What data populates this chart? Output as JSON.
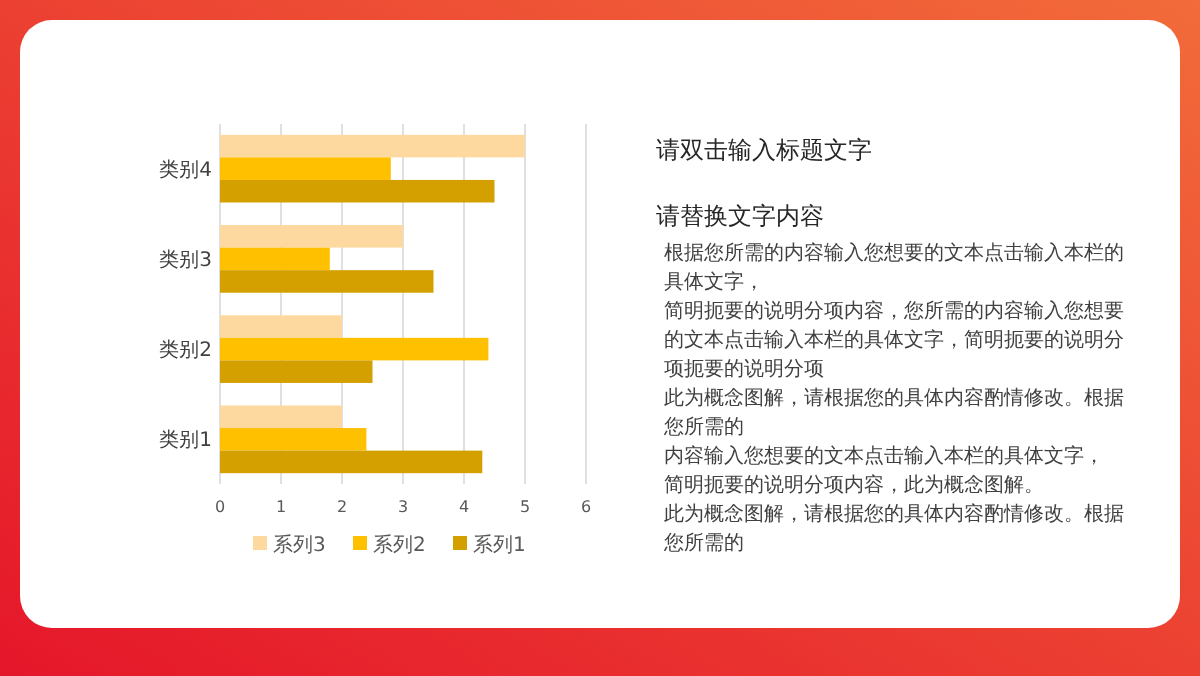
{
  "chart_data": [
    {
      "type": "bar",
      "orientation": "horizontal",
      "categories": [
        "类别4",
        "类别3",
        "类别2",
        "类别1"
      ],
      "series": [
        {
          "name": "系列3",
          "color": "#fdd9a0",
          "values": [
            5,
            3,
            2,
            2
          ]
        },
        {
          "name": "系列2",
          "color": "#ffc000",
          "values": [
            2.8,
            1.8,
            4.4,
            2.4
          ]
        },
        {
          "name": "系列1",
          "color": "#d4a000",
          "values": [
            4.5,
            3.5,
            2.5,
            4.3
          ]
        }
      ],
      "xlim": [
        0,
        6
      ],
      "xticks": [
        0,
        1,
        2,
        3,
        4,
        5,
        6
      ],
      "grid": "x",
      "legend": "bottom"
    },
    {
      "type": "other",
      "title": "请双击输入标题文字",
      "subtitle": "请替换文字内容",
      "annotations": [
        "根据您所需的内容输入您想要的文本点击输入本栏的具体文字，",
        "简明扼要的说明分项内容，您所需的内容输入您想要的文本点击输入本栏的具体文字，简明扼要的说明分项扼要的说明分项",
        "此为概念图解，请根据您的具体内容酌情修改。根据您所需的",
        "内容输入您想要的文本点击输入本栏的具体文字，",
        "简明扼要的说明分项内容，此为概念图解。",
        "此为概念图解，请根据您的具体内容酌情修改。根据您所需的"
      ]
    }
  ]
}
